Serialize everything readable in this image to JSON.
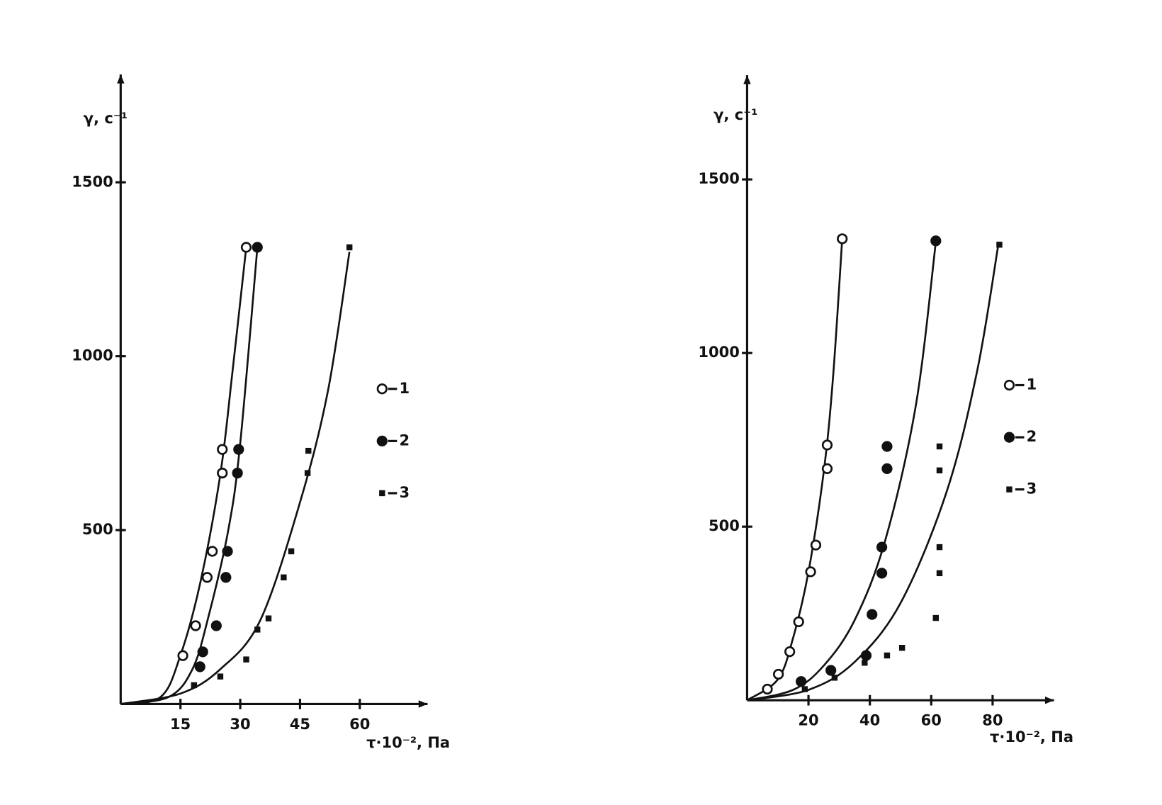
{
  "chart_data": [
    {
      "type": "scatter",
      "y_label": "γ, с⁻¹",
      "x_label": "τ·10⁻², Па",
      "xlim": [
        0,
        77
      ],
      "ylim": [
        0,
        1810
      ],
      "xticks": [
        15,
        30,
        45,
        60
      ],
      "yticks": [
        500,
        1000,
        1500
      ],
      "series": [
        {
          "name": "1",
          "marker": "open-circle",
          "color": "#111111",
          "x": [
            15.6,
            18.8,
            21.7,
            23,
            25.5,
            25.5,
            31.5
          ],
          "values": [
            139,
            225,
            364,
            439,
            664,
            732,
            1313
          ],
          "curve_x": [
            0,
            10,
            15,
            20,
            25,
            28,
            31.5
          ],
          "curve_values": [
            0,
            20,
            140,
            350,
            660,
            950,
            1313
          ]
        },
        {
          "name": "2",
          "marker": "filled-circle",
          "color": "#111111",
          "x": [
            19.9,
            20.6,
            24,
            26.4,
            26.8,
            29.3,
            29.6,
            34.3
          ],
          "values": [
            107,
            150,
            225,
            364,
            439,
            664,
            732,
            1313
          ],
          "curve_x": [
            0,
            12,
            18,
            22,
            27,
            30,
            34.3
          ],
          "curve_values": [
            0,
            20,
            100,
            250,
            500,
            750,
            1313
          ]
        },
        {
          "name": "3",
          "marker": "square",
          "color": "#111111",
          "x": [
            18.4,
            25,
            31.5,
            34.3,
            37.1,
            40.9,
            42.8,
            46.9,
            47.1,
            57.4
          ],
          "values": [
            54,
            79,
            128,
            214,
            246,
            364,
            439,
            664,
            728,
            1313
          ],
          "curve_x": [
            0,
            15,
            25,
            35,
            45,
            52,
            57.4
          ],
          "curve_values": [
            0,
            30,
            100,
            240,
            580,
            900,
            1300
          ]
        }
      ]
    },
    {
      "type": "scatter",
      "y_label": "γ, с⁻¹",
      "x_label": "τ·10⁻², Па",
      "xlim": [
        0,
        100
      ],
      "ylim": [
        0,
        1800
      ],
      "xticks": [
        20,
        40,
        60,
        80
      ],
      "yticks": [
        500,
        1000,
        1500
      ],
      "series": [
        {
          "name": "1",
          "marker": "open-circle",
          "color": "#111111",
          "x": [
            6.6,
            10.2,
            13.9,
            16.8,
            20.7,
            22.4,
            26.1,
            26.1,
            31
          ],
          "values": [
            32,
            75,
            140,
            226,
            370,
            447,
            667,
            735,
            1329
          ],
          "curve_x": [
            0,
            10,
            15,
            20,
            25,
            28,
            31
          ],
          "curve_values": [
            0,
            60,
            180,
            370,
            660,
            930,
            1330
          ]
        },
        {
          "name": "2",
          "marker": "filled-circle",
          "color": "#111111",
          "x": [
            17.6,
            27.3,
            38.8,
            40.7,
            43.9,
            43.9,
            45.6,
            45.6,
            61.5
          ],
          "values": [
            54,
            86,
            129,
            247,
            366,
            441,
            667,
            731,
            1323
          ],
          "curve_x": [
            0,
            15,
            25,
            35,
            45,
            55,
            61.5
          ],
          "curve_values": [
            0,
            30,
            100,
            230,
            460,
            850,
            1320
          ]
        },
        {
          "name": "3",
          "marker": "square",
          "color": "#111111",
          "x": [
            18.8,
            28.5,
            38.3,
            45.6,
            50.5,
            61.5,
            62.7,
            62.7,
            62.7,
            62.7,
            82.2
          ],
          "values": [
            32,
            65,
            108,
            129,
            151,
            237,
            366,
            441,
            662,
            731,
            1312
          ],
          "curve_x": [
            0,
            20,
            35,
            50,
            65,
            75,
            82
          ],
          "curve_values": [
            0,
            30,
            110,
            280,
            600,
            950,
            1320
          ]
        }
      ]
    }
  ]
}
